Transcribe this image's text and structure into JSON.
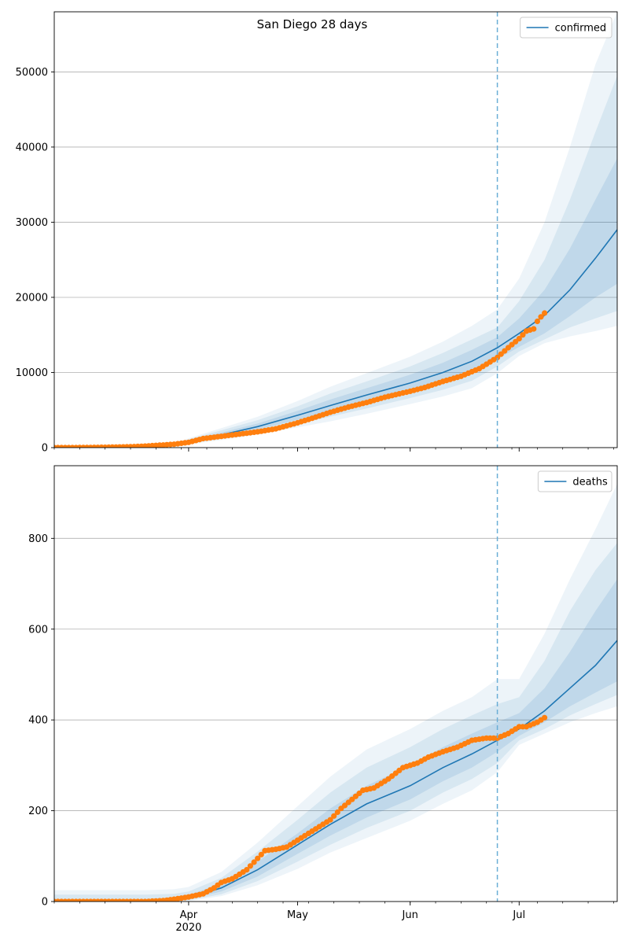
{
  "figure": {
    "title": "San Diego 28 days"
  },
  "chart_data": [
    {
      "type": "line",
      "panel": "top",
      "title": "San Diego 28 days",
      "xlabel": "",
      "ylabel": "",
      "x_start": "2020-02-24",
      "x_end": "2020-07-28",
      "forecast_start": "2020-06-25",
      "ylim": [
        0,
        58000
      ],
      "yticks": [
        0,
        10000,
        20000,
        30000,
        40000,
        50000
      ],
      "xticks": [
        {
          "date": "2020-04-01",
          "label": "Apr",
          "sublabel": "2020"
        },
        {
          "date": "2020-05-01",
          "label": "May",
          "sublabel": ""
        },
        {
          "date": "2020-06-01",
          "label": "Jun",
          "sublabel": ""
        },
        {
          "date": "2020-07-01",
          "label": "Jul",
          "sublabel": ""
        }
      ],
      "grid": "horizontal",
      "legend": {
        "position": "top-right",
        "entries": [
          "confirmed"
        ]
      },
      "model": {
        "name": "confirmed",
        "x": [
          "2020-02-24",
          "2020-03-10",
          "2020-03-20",
          "2020-03-28",
          "2020-04-01",
          "2020-04-10",
          "2020-04-20",
          "2020-05-01",
          "2020-05-10",
          "2020-05-20",
          "2020-06-01",
          "2020-06-10",
          "2020-06-18",
          "2020-06-25",
          "2020-07-01",
          "2020-07-08",
          "2020-07-15",
          "2020-07-22",
          "2020-07-28"
        ],
        "mid": [
          0,
          0,
          100,
          350,
          800,
          1700,
          2800,
          4300,
          5600,
          7000,
          8600,
          10000,
          11500,
          13300,
          15200,
          17600,
          21000,
          25200,
          29000
        ],
        "bands": [
          {
            "lo": [
              0,
              0,
              80,
              300,
              650,
              1450,
              2400,
              3700,
              4800,
              6000,
              7500,
              8700,
              10000,
              11800,
              13400,
              15200,
              17500,
              20000,
              21800
            ],
            "hi": [
              0,
              0,
              120,
              400,
              950,
              2000,
              3200,
              4900,
              6400,
              7900,
              9700,
              11300,
              13000,
              14700,
              17200,
              21000,
              26500,
              33000,
              38500
            ]
          },
          {
            "lo": [
              0,
              0,
              60,
              260,
              530,
              1200,
              2050,
              3150,
              4100,
              5200,
              6600,
              7700,
              8900,
              10800,
              12800,
              14400,
              16000,
              17200,
              18200
            ],
            "hi": [
              0,
              0,
              140,
              460,
              1100,
              2300,
              3650,
              5500,
              7200,
              8800,
              10800,
              12600,
              14400,
              16000,
              19500,
              25000,
              33000,
              42000,
              49500
            ]
          },
          {
            "lo": [
              0,
              0,
              50,
              220,
              430,
              1000,
              1750,
              2700,
              3500,
              4500,
              5800,
              6800,
              7900,
              9900,
              12200,
              13900,
              14800,
              15500,
              16200
            ],
            "hi": [
              0,
              0,
              160,
              520,
              1250,
              2600,
              4100,
              6200,
              8100,
              9900,
              12100,
              14100,
              16200,
              18400,
              22500,
              30000,
              40000,
              51000,
              58000
            ]
          }
        ]
      },
      "observed": {
        "name": "",
        "x": [
          "2020-02-24",
          "2020-03-01",
          "2020-03-10",
          "2020-03-15",
          "2020-03-20",
          "2020-03-25",
          "2020-03-28",
          "2020-04-01",
          "2020-04-05",
          "2020-04-10",
          "2020-04-15",
          "2020-04-20",
          "2020-04-25",
          "2020-05-01",
          "2020-05-05",
          "2020-05-10",
          "2020-05-15",
          "2020-05-20",
          "2020-05-25",
          "2020-06-01",
          "2020-06-05",
          "2020-06-10",
          "2020-06-15",
          "2020-06-20",
          "2020-06-25",
          "2020-06-28",
          "2020-07-01",
          "2020-07-03",
          "2020-07-05",
          "2020-07-06",
          "2020-07-07",
          "2020-07-08"
        ],
        "y": [
          0,
          0,
          50,
          100,
          200,
          350,
          450,
          700,
          1200,
          1500,
          1800,
          2100,
          2500,
          3300,
          3900,
          4700,
          5400,
          6000,
          6700,
          7500,
          8000,
          8800,
          9500,
          10500,
          12000,
          13300,
          14500,
          15500,
          15800,
          16800,
          17400,
          17900
        ]
      }
    },
    {
      "type": "line",
      "panel": "bottom",
      "title": "",
      "xlabel": "",
      "ylabel": "",
      "x_start": "2020-02-24",
      "x_end": "2020-07-28",
      "forecast_start": "2020-06-25",
      "ylim": [
        0,
        960
      ],
      "yticks": [
        0,
        200,
        400,
        600,
        800
      ],
      "xticks": [
        {
          "date": "2020-04-01",
          "label": "Apr",
          "sublabel": "2020"
        },
        {
          "date": "2020-05-01",
          "label": "May",
          "sublabel": ""
        },
        {
          "date": "2020-06-01",
          "label": "Jun",
          "sublabel": ""
        },
        {
          "date": "2020-07-01",
          "label": "Jul",
          "sublabel": ""
        }
      ],
      "grid": "horizontal",
      "legend": {
        "position": "top-right",
        "entries": [
          "deaths"
        ]
      },
      "model": {
        "name": "deaths",
        "x": [
          "2020-02-24",
          "2020-03-10",
          "2020-03-20",
          "2020-03-28",
          "2020-04-01",
          "2020-04-10",
          "2020-04-20",
          "2020-05-01",
          "2020-05-10",
          "2020-05-20",
          "2020-06-01",
          "2020-06-10",
          "2020-06-18",
          "2020-06-25",
          "2020-07-01",
          "2020-07-08",
          "2020-07-15",
          "2020-07-22",
          "2020-07-28"
        ],
        "mid": [
          0,
          0,
          1,
          3,
          8,
          30,
          70,
          125,
          170,
          215,
          255,
          295,
          325,
          355,
          380,
          420,
          470,
          520,
          575
        ],
        "bands": [
          {
            "lo": [
              0,
              0,
              0,
              1,
              5,
              22,
              55,
              105,
              145,
              185,
              225,
              265,
              295,
              330,
              365,
              395,
              430,
              460,
              485
            ],
            "hi": [
              5,
              5,
              5,
              7,
              14,
              40,
              88,
              150,
              205,
              255,
              300,
              340,
              370,
              395,
              415,
              470,
              550,
              640,
              710
            ]
          },
          {
            "lo": [
              0,
              0,
              0,
              0,
              3,
              16,
              45,
              88,
              125,
              162,
              200,
              240,
              270,
              305,
              355,
              380,
              410,
              435,
              455
            ],
            "hi": [
              15,
              15,
              15,
              17,
              22,
              52,
              110,
              180,
              240,
              295,
              340,
              380,
              410,
              435,
              450,
              530,
              640,
              730,
              790
            ]
          },
          {
            "lo": [
              0,
              0,
              0,
              0,
              1,
              12,
              36,
              72,
              108,
              140,
              178,
              215,
              245,
              285,
              345,
              370,
              395,
              415,
              430
            ],
            "hi": [
              25,
              25,
              25,
              27,
              32,
              65,
              130,
              210,
              275,
              335,
              380,
              420,
              450,
              490,
              490,
              590,
              710,
              820,
              920
            ]
          }
        ]
      },
      "observed": {
        "name": "",
        "x": [
          "2020-02-24",
          "2020-03-10",
          "2020-03-20",
          "2020-03-25",
          "2020-03-28",
          "2020-04-01",
          "2020-04-05",
          "2020-04-08",
          "2020-04-10",
          "2020-04-13",
          "2020-04-17",
          "2020-04-20",
          "2020-04-22",
          "2020-04-25",
          "2020-04-28",
          "2020-05-01",
          "2020-05-04",
          "2020-05-07",
          "2020-05-10",
          "2020-05-13",
          "2020-05-16",
          "2020-05-19",
          "2020-05-22",
          "2020-05-26",
          "2020-05-30",
          "2020-06-03",
          "2020-06-06",
          "2020-06-10",
          "2020-06-14",
          "2020-06-18",
          "2020-06-22",
          "2020-06-25",
          "2020-06-28",
          "2020-07-01",
          "2020-07-03",
          "2020-07-06",
          "2020-07-08"
        ],
        "y": [
          0,
          0,
          0,
          2,
          5,
          10,
          17,
          30,
          42,
          50,
          70,
          95,
          112,
          115,
          120,
          135,
          150,
          165,
          180,
          205,
          225,
          245,
          250,
          270,
          295,
          305,
          318,
          330,
          340,
          355,
          360,
          360,
          370,
          385,
          385,
          395,
          405
        ]
      }
    }
  ]
}
